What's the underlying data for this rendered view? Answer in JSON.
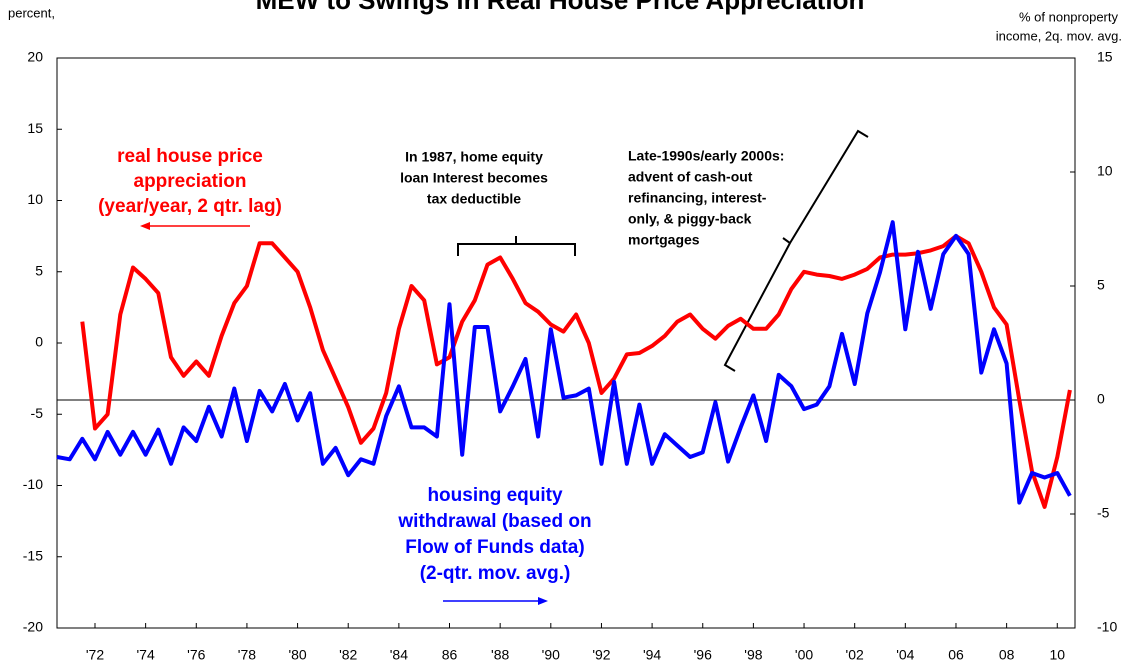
{
  "chart_data": {
    "type": "line",
    "title": "MEW to Swings in Real House Price Appreciation",
    "ylabel": "percent,",
    "y2label": [
      "% of nonproperty",
      "income, 2q. mov. avg."
    ],
    "x": [
      1970.5,
      1971.0,
      1971.5,
      1972.0,
      1972.5,
      1973.0,
      1973.5,
      1974.0,
      1974.5,
      1975.0,
      1975.5,
      1976.0,
      1976.5,
      1977.0,
      1977.5,
      1978.0,
      1978.5,
      1979.0,
      1979.5,
      1980.0,
      1980.5,
      1981.0,
      1981.5,
      1982.0,
      1982.5,
      1983.0,
      1983.5,
      1984.0,
      1984.5,
      1985.0,
      1985.5,
      1986.0,
      1986.5,
      1987.0,
      1987.5,
      1988.0,
      1988.5,
      1989.0,
      1989.5,
      1990.0,
      1990.5,
      1991.0,
      1991.5,
      1992.0,
      1992.5,
      1993.0,
      1993.5,
      1994.0,
      1994.5,
      1995.0,
      1995.5,
      1996.0,
      1996.5,
      1997.0,
      1997.5,
      1998.0,
      1998.5,
      1999.0,
      1999.5,
      2000.0,
      2000.5,
      2001.0,
      2001.5,
      2002.0,
      2002.5,
      2003.0,
      2003.5,
      2004.0,
      2004.5,
      2005.0,
      2005.5,
      2006.0,
      2006.5,
      2007.0,
      2007.5,
      2008.0,
      2008.5,
      2009.0,
      2009.5,
      2010.0,
      2010.5
    ],
    "series": [
      {
        "name": "real house price appreciation",
        "color": "#ff0000",
        "axis": "y",
        "values": [
          null,
          null,
          1.5,
          -6,
          -5,
          2,
          5.3,
          4.5,
          3.5,
          -1,
          -2.3,
          -1.3,
          -2.3,
          0.5,
          2.8,
          4,
          7,
          7,
          6,
          5,
          2.5,
          -0.5,
          -2.5,
          -4.5,
          -7,
          -6,
          -3.5,
          1,
          4,
          3,
          -1.5,
          -1,
          1.5,
          3,
          5.5,
          6,
          4.5,
          2.8,
          2.2,
          1.3,
          0.8,
          2,
          0,
          -3.5,
          -2.5,
          -0.8,
          -0.7,
          -0.2,
          0.5,
          1.5,
          2,
          1,
          0.3,
          1.2,
          1.7,
          1,
          1,
          2,
          3.8,
          5,
          4.8,
          4.7,
          4.5,
          4.8,
          5.2,
          6,
          6.2,
          6.2,
          6.3,
          6.5,
          6.8,
          7.5,
          7,
          5,
          2.5,
          1.3,
          -4,
          -9,
          -11.5,
          -8,
          -3.3
        ]
      },
      {
        "name": "housing equity withdrawal",
        "color": "#0000ff",
        "axis": "y2",
        "values": [
          -2.5,
          -2.6,
          -1.7,
          -2.6,
          -1.4,
          -2.4,
          -1.4,
          -2.4,
          -1.3,
          -2.8,
          -1.2,
          -1.8,
          -0.3,
          -1.6,
          0.5,
          -1.8,
          0.4,
          -0.5,
          0.7,
          -0.9,
          0.3,
          -2.8,
          -2.1,
          -3.3,
          -2.6,
          -2.8,
          -0.7,
          0.6,
          -1.2,
          -1.2,
          -1.6,
          4.2,
          -2.4,
          3.2,
          3.2,
          -0.5,
          0.6,
          1.8,
          -1.6,
          3.1,
          0.1,
          0.2,
          0.5,
          -2.8,
          0.8,
          -2.8,
          -0.2,
          -2.8,
          -1.5,
          -2,
          -2.5,
          -2.3,
          -0.1,
          -2.7,
          -1.2,
          0.2,
          -1.8,
          1.1,
          0.6,
          -0.4,
          -0.2,
          0.6,
          2.9,
          0.7,
          3.8,
          5.6,
          7.8,
          3.1,
          6.5,
          4,
          6.4,
          7.2,
          6.4,
          1.2,
          3.1,
          1.6,
          -4.5,
          -3.2,
          -3.4,
          -3.2,
          -4.2
        ]
      }
    ],
    "xlim": [
      1970.5,
      2010.7
    ],
    "xticks": [
      {
        "value": 1972,
        "label": "'72"
      },
      {
        "value": 1974,
        "label": "'74"
      },
      {
        "value": 1976,
        "label": "'76"
      },
      {
        "value": 1978,
        "label": "'78"
      },
      {
        "value": 1980,
        "label": "'80"
      },
      {
        "value": 1982,
        "label": "'82"
      },
      {
        "value": 1984,
        "label": "'84"
      },
      {
        "value": 1986,
        "label": "86"
      },
      {
        "value": 1988,
        "label": "'88"
      },
      {
        "value": 1990,
        "label": "'90"
      },
      {
        "value": 1992,
        "label": "'92"
      },
      {
        "value": 1994,
        "label": "'94"
      },
      {
        "value": 1996,
        "label": "'96"
      },
      {
        "value": 1998,
        "label": "'98"
      },
      {
        "value": 2000,
        "label": "'00"
      },
      {
        "value": 2002,
        "label": "'02"
      },
      {
        "value": 2004,
        "label": "'04"
      },
      {
        "value": 2006,
        "label": "06"
      },
      {
        "value": 2008,
        "label": "08"
      },
      {
        "value": 2010,
        "label": "10"
      }
    ],
    "ylim": [
      -20,
      20
    ],
    "yticks": [
      -20,
      -15,
      -10,
      -5,
      0,
      5,
      10,
      15,
      20
    ],
    "y2lim": [
      -10,
      15
    ],
    "y2ticks": [
      -10,
      -5,
      0,
      5,
      10,
      15
    ],
    "hline_y2": 0,
    "annotations": [
      {
        "lines": [
          "real house price",
          "appreciation",
          "(year/year, 2 qtr. lag)"
        ],
        "color": "#ff0000"
      },
      {
        "lines": [
          "In 1987,  home equity",
          "loan Interest becomes",
          "tax deductible"
        ],
        "color": "#000000"
      },
      {
        "lines": [
          "Late-1990s/early 2000s:",
          "advent of cash-out",
          "refinancing, interest-",
          "only, & piggy-back",
          "mortgages"
        ],
        "color": "#000000"
      },
      {
        "lines": [
          "housing equity",
          "withdrawal (based on",
          "Flow of Funds data)",
          "(2-qtr. mov. avg.)"
        ],
        "color": "#0000ff"
      }
    ]
  }
}
